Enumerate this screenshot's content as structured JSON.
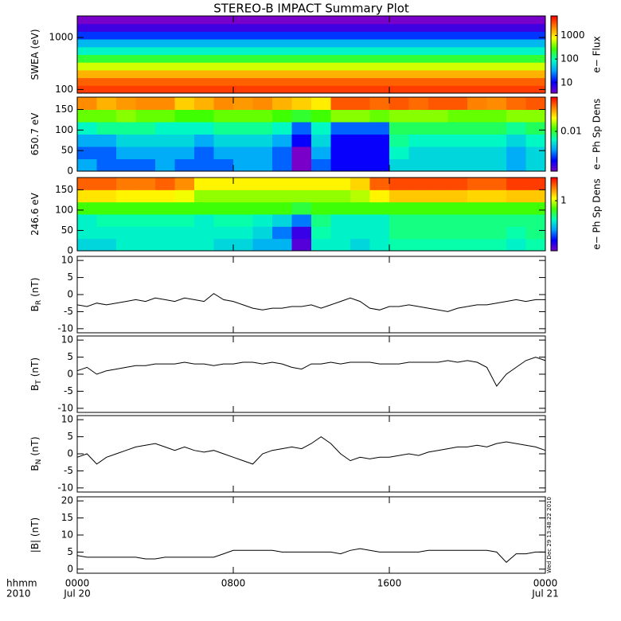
{
  "title": "STEREO-B IMPACT Summary Plot",
  "colormap": [
    "#7800c8",
    "#0000ff",
    "#00a0ff",
    "#00ffc0",
    "#40ff00",
    "#ffff00",
    "#ff8000",
    "#ff0000"
  ],
  "chart_data": [
    {
      "type": "heatmap",
      "ylabel": "SWEA (eV)",
      "ylog": true,
      "ylim": [
        85,
        2600
      ],
      "yticks": [
        100,
        1000
      ],
      "xlim": [
        0,
        24
      ],
      "xticks": [
        0,
        8,
        16,
        24
      ],
      "x": [
        12
      ],
      "y": [
        101,
        142,
        200,
        281,
        396,
        558,
        785,
        1107,
        1560,
        2193
      ],
      "values": [
        [
          4000
        ],
        [
          3000
        ],
        [
          1500
        ],
        [
          600
        ],
        [
          200
        ],
        [
          80
        ],
        [
          40
        ],
        [
          15
        ],
        [
          6
        ],
        [
          3
        ]
      ],
      "zlabel": "e− Flux",
      "zlim": [
        3.6,
        6700
      ],
      "zticks": [
        10,
        100,
        1000
      ]
    },
    {
      "type": "heatmap",
      "ylabel": "650.7 eV",
      "ylim": [
        0,
        180
      ],
      "yticks": [
        0,
        50,
        100,
        150
      ],
      "xlim": [
        0,
        24
      ],
      "xticks": [
        0,
        8,
        16,
        24
      ],
      "x": [
        0.5,
        1.5,
        2.5,
        3.5,
        4.5,
        5.5,
        6.5,
        7.5,
        8.5,
        9.5,
        10.5,
        11.5,
        12.5,
        13.5,
        14.5,
        15.5,
        16.5,
        17.5,
        18.5,
        19.5,
        20.5,
        21.5,
        22.5,
        23.5
      ],
      "y": [
        15,
        45,
        75,
        105,
        135,
        165
      ],
      "values": [
        [
          0.005,
          0.004,
          0.004,
          0.004,
          0.005,
          0.004,
          0.004,
          0.004,
          0.005,
          0.005,
          0.004,
          0.002,
          0.004,
          0.003,
          0.003,
          0.003,
          0.006,
          0.006,
          0.006,
          0.006,
          0.006,
          0.006,
          0.005,
          0.006
        ],
        [
          0.004,
          0.004,
          0.005,
          0.005,
          0.005,
          0.005,
          0.004,
          0.005,
          0.005,
          0.005,
          0.004,
          0.002,
          0.005,
          0.003,
          0.003,
          0.003,
          0.007,
          0.006,
          0.006,
          0.006,
          0.006,
          0.006,
          0.005,
          0.006
        ],
        [
          0.005,
          0.005,
          0.006,
          0.006,
          0.006,
          0.006,
          0.005,
          0.006,
          0.006,
          0.006,
          0.005,
          0.003,
          0.006,
          0.003,
          0.003,
          0.003,
          0.008,
          0.007,
          0.007,
          0.007,
          0.007,
          0.007,
          0.006,
          0.007
        ],
        [
          0.007,
          0.008,
          0.008,
          0.008,
          0.007,
          0.007,
          0.007,
          0.008,
          0.008,
          0.008,
          0.007,
          0.004,
          0.007,
          0.004,
          0.004,
          0.004,
          0.009,
          0.009,
          0.009,
          0.009,
          0.009,
          0.009,
          0.008,
          0.009
        ],
        [
          0.012,
          0.012,
          0.013,
          0.012,
          0.012,
          0.011,
          0.011,
          0.012,
          0.012,
          0.012,
          0.011,
          0.01,
          0.011,
          0.013,
          0.013,
          0.012,
          0.013,
          0.013,
          0.013,
          0.012,
          0.012,
          0.012,
          0.013,
          0.013
        ],
        [
          0.025,
          0.022,
          0.024,
          0.025,
          0.025,
          0.02,
          0.022,
          0.025,
          0.024,
          0.025,
          0.022,
          0.02,
          0.018,
          0.03,
          0.03,
          0.028,
          0.03,
          0.028,
          0.03,
          0.03,
          0.026,
          0.025,
          0.028,
          0.03
        ]
      ],
      "zlabel": "e− Ph Sp Dens",
      "zlim": [
        0.002,
        0.04
      ],
      "zticks": [
        0.01
      ]
    },
    {
      "type": "heatmap",
      "ylabel": "246.6 eV",
      "ylim": [
        0,
        180
      ],
      "yticks": [
        0,
        50,
        100,
        150
      ],
      "xlim": [
        0,
        24
      ],
      "xticks": [
        0,
        8,
        16,
        24
      ],
      "x": [
        0.5,
        1.5,
        2.5,
        3.5,
        4.5,
        5.5,
        6.5,
        7.5,
        8.5,
        9.5,
        10.5,
        11.5,
        12.5,
        13.5,
        14.5,
        15.5,
        16.5,
        17.5,
        18.5,
        19.5,
        20.5,
        21.5,
        22.5,
        23.5
      ],
      "y": [
        15,
        45,
        75,
        105,
        135,
        165
      ],
      "values": [
        [
          0.25,
          0.25,
          0.3,
          0.3,
          0.3,
          0.3,
          0.3,
          0.25,
          0.25,
          0.2,
          0.2,
          0.06,
          0.3,
          0.3,
          0.25,
          0.3,
          0.35,
          0.35,
          0.35,
          0.35,
          0.35,
          0.35,
          0.3,
          0.35
        ],
        [
          0.3,
          0.3,
          0.3,
          0.3,
          0.3,
          0.3,
          0.3,
          0.3,
          0.3,
          0.25,
          0.15,
          0.07,
          0.35,
          0.3,
          0.3,
          0.3,
          0.4,
          0.4,
          0.4,
          0.4,
          0.4,
          0.4,
          0.35,
          0.4
        ],
        [
          0.3,
          0.35,
          0.35,
          0.35,
          0.35,
          0.35,
          0.3,
          0.35,
          0.35,
          0.3,
          0.25,
          0.15,
          0.4,
          0.3,
          0.3,
          0.3,
          0.4,
          0.4,
          0.4,
          0.4,
          0.4,
          0.4,
          0.4,
          0.4
        ],
        [
          0.6,
          0.6,
          0.6,
          0.6,
          0.6,
          0.6,
          0.6,
          0.6,
          0.6,
          0.6,
          0.6,
          0.5,
          0.6,
          0.6,
          0.6,
          0.6,
          0.6,
          0.6,
          0.6,
          0.6,
          0.6,
          0.6,
          0.6,
          0.6
        ],
        [
          1.3,
          1.3,
          1.2,
          1.2,
          1.2,
          1.1,
          0.8,
          0.8,
          0.8,
          0.8,
          0.8,
          0.8,
          0.8,
          0.8,
          0.9,
          1.2,
          1.5,
          1.5,
          1.5,
          1.5,
          1.4,
          1.4,
          1.5,
          1.5
        ],
        [
          2.5,
          2.5,
          2.2,
          2.2,
          2.5,
          2.0,
          1.2,
          1.2,
          1.2,
          1.2,
          1.2,
          1.2,
          1.2,
          1.2,
          1.4,
          2.5,
          2.8,
          2.8,
          2.8,
          2.8,
          2.5,
          2.5,
          3.0,
          3.0
        ]
      ],
      "zlabel": "e− Ph Sp Dens",
      "zlim": [
        0.05,
        4
      ],
      "zticks": [
        1
      ]
    },
    {
      "type": "line",
      "ylabel": "B",
      "ylabel_sub": "R",
      "ylabel_unit": "(nT)",
      "ylim": [
        -11.2,
        11.2
      ],
      "yticks": [
        -10,
        -5,
        0,
        5,
        10
      ],
      "xlim": [
        0,
        24
      ],
      "xticks": [
        0,
        8,
        16,
        24
      ],
      "color": "#000000",
      "x": [
        0,
        0.5,
        1,
        1.5,
        2,
        2.5,
        3,
        3.5,
        4,
        4.5,
        5,
        5.5,
        6,
        6.5,
        7,
        7.5,
        8,
        8.5,
        9,
        9.5,
        10,
        10.5,
        11,
        11.5,
        12,
        12.5,
        13,
        13.5,
        14,
        14.5,
        15,
        15.5,
        16,
        16.5,
        17,
        17.5,
        18,
        18.5,
        19,
        19.5,
        20,
        20.5,
        21,
        21.5,
        22,
        22.5,
        23,
        23.5,
        24
      ],
      "values": [
        -3,
        -3.5,
        -2.5,
        -3,
        -2.5,
        -2,
        -1.5,
        -2,
        -1,
        -1.5,
        -2,
        -1,
        -1.5,
        -2,
        0.3,
        -1.5,
        -2,
        -3,
        -4,
        -4.5,
        -4,
        -4,
        -3.5,
        -3.5,
        -3,
        -4,
        -3,
        -2,
        -1,
        -2,
        -4,
        -4.5,
        -3.5,
        -3.5,
        -3,
        -3.5,
        -4,
        -4.5,
        -5,
        -4,
        -3.5,
        -3,
        -3,
        -2.5,
        -2,
        -1.5,
        -2,
        -1.5,
        -1.5
      ]
    },
    {
      "type": "line",
      "ylabel": "B",
      "ylabel_sub": "T",
      "ylabel_unit": "(nT)",
      "ylim": [
        -11.2,
        11.2
      ],
      "yticks": [
        -10,
        -5,
        0,
        5,
        10
      ],
      "xlim": [
        0,
        24
      ],
      "xticks": [
        0,
        8,
        16,
        24
      ],
      "color": "#000000",
      "x": [
        0,
        0.5,
        1,
        1.5,
        2,
        2.5,
        3,
        3.5,
        4,
        4.5,
        5,
        5.5,
        6,
        6.5,
        7,
        7.5,
        8,
        8.5,
        9,
        9.5,
        10,
        10.5,
        11,
        11.5,
        12,
        12.5,
        13,
        13.5,
        14,
        14.5,
        15,
        15.5,
        16,
        16.5,
        17,
        17.5,
        18,
        18.5,
        19,
        19.5,
        20,
        20.5,
        21,
        21.5,
        22,
        22.5,
        23,
        23.5,
        24
      ],
      "values": [
        1,
        2,
        0,
        1,
        1.5,
        2,
        2.5,
        2.5,
        3,
        3,
        3,
        3.5,
        3,
        3,
        2.5,
        3,
        3,
        3.5,
        3.5,
        3,
        3.5,
        3,
        2,
        1.5,
        3,
        3,
        3.5,
        3,
        3.5,
        3.5,
        3.5,
        3,
        3,
        3,
        3.5,
        3.5,
        3.5,
        3.5,
        4,
        3.5,
        4,
        3.5,
        2,
        -3.5,
        0,
        2,
        4,
        5,
        4
      ]
    },
    {
      "type": "line",
      "ylabel": "B",
      "ylabel_sub": "N",
      "ylabel_unit": "(nT)",
      "ylim": [
        -11.2,
        11.2
      ],
      "yticks": [
        -10,
        -5,
        0,
        5,
        10
      ],
      "xlim": [
        0,
        24
      ],
      "xticks": [
        0,
        8,
        16,
        24
      ],
      "color": "#000000",
      "x": [
        0,
        0.5,
        1,
        1.5,
        2,
        2.5,
        3,
        3.5,
        4,
        4.5,
        5,
        5.5,
        6,
        6.5,
        7,
        7.5,
        8,
        8.5,
        9,
        9.5,
        10,
        10.5,
        11,
        11.5,
        12,
        12.5,
        13,
        13.5,
        14,
        14.5,
        15,
        15.5,
        16,
        16.5,
        17,
        17.5,
        18,
        18.5,
        19,
        19.5,
        20,
        20.5,
        21,
        21.5,
        22,
        22.5,
        23,
        23.5,
        24
      ],
      "values": [
        -1,
        0,
        -3,
        -1,
        0,
        1,
        2,
        2.5,
        3,
        2,
        1,
        2,
        1,
        0.5,
        1,
        0,
        -1,
        -2,
        -3,
        0,
        1,
        1.5,
        2,
        1.5,
        3,
        5,
        3,
        0,
        -2,
        -1,
        -1.5,
        -1,
        -1,
        -0.5,
        0,
        -0.5,
        0.5,
        1,
        1.5,
        2,
        2,
        2.5,
        2,
        3,
        3.5,
        3,
        2.5,
        2,
        1
      ]
    },
    {
      "type": "line",
      "ylabel": "|B| (nT)",
      "ylim": [
        -1.2,
        21.2
      ],
      "yticks": [
        0,
        5,
        10,
        15,
        20
      ],
      "xlim": [
        0,
        24
      ],
      "color": "#000000",
      "xticks": [
        {
          "value": 0,
          "label": "0000"
        },
        {
          "value": 8,
          "label": "0800"
        },
        {
          "value": 16,
          "label": "1600"
        },
        {
          "value": 24,
          "label": "0000"
        }
      ],
      "date_labels": [
        {
          "value": 0,
          "label": "Jul 20"
        },
        {
          "value": 24,
          "label": "Jul 21"
        }
      ],
      "xlabel": "hhmm",
      "year": "2010",
      "annotation": "Wed Dec 29 13:48:22 2010",
      "x": [
        0,
        0.5,
        1,
        1.5,
        2,
        2.5,
        3,
        3.5,
        4,
        4.5,
        5,
        5.5,
        6,
        6.5,
        7,
        7.5,
        8,
        8.5,
        9,
        9.5,
        10,
        10.5,
        11,
        11.5,
        12,
        12.5,
        13,
        13.5,
        14,
        14.5,
        15,
        15.5,
        16,
        16.5,
        17,
        17.5,
        18,
        18.5,
        19,
        19.5,
        20,
        20.5,
        21,
        21.5,
        22,
        22.5,
        23,
        23.5,
        24
      ],
      "values": [
        4,
        3.5,
        3.5,
        3.5,
        3.5,
        3.5,
        3.5,
        3,
        3,
        3.5,
        3.5,
        3.5,
        3.5,
        3.5,
        3.5,
        4.5,
        5.5,
        5.5,
        5.5,
        5.5,
        5.5,
        5,
        5,
        5,
        5,
        5,
        5,
        4.5,
        5.5,
        6,
        5.5,
        5,
        5,
        5,
        5,
        5,
        5.5,
        5.5,
        5.5,
        5.5,
        5.5,
        5.5,
        5.5,
        5,
        2,
        4.5,
        4.5,
        5,
        5
      ]
    }
  ]
}
